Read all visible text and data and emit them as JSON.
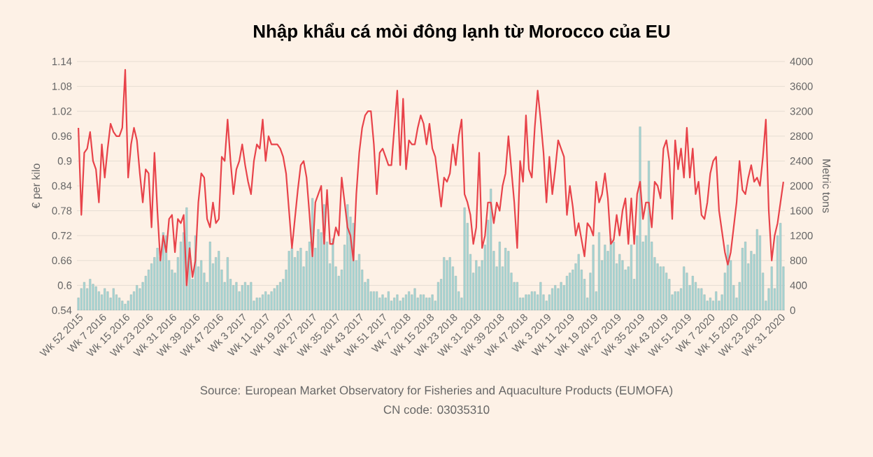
{
  "chart_data": {
    "type": "bar",
    "title": "Nhập khẩu cá mòi đông lạnh từ Morocco của EU",
    "ylabel": "€ per kilo",
    "y2label": "Metric tons",
    "annotations": [
      "Source: European Market Observatory for Fisheries and Aquaculture Products (EUMOFA)",
      "CN code: 03035310"
    ],
    "categories": [
      "Wk 52 2015",
      null,
      null,
      null,
      null,
      null,
      null,
      null,
      "Wk 7 2016",
      null,
      null,
      null,
      null,
      null,
      null,
      null,
      "Wk 15 2016",
      null,
      null,
      null,
      null,
      null,
      null,
      null,
      "Wk 23 2016",
      null,
      null,
      null,
      null,
      null,
      null,
      null,
      "Wk 31 2016",
      null,
      null,
      null,
      null,
      null,
      null,
      null,
      "Wk 39 2016",
      null,
      null,
      null,
      null,
      null,
      null,
      null,
      "Wk 47 2016",
      null,
      null,
      null,
      null,
      null,
      null,
      null,
      "Wk 3 2017",
      null,
      null,
      null,
      null,
      null,
      null,
      null,
      "Wk 11 2017",
      null,
      null,
      null,
      null,
      null,
      null,
      null,
      "Wk 19 2017",
      null,
      null,
      null,
      null,
      null,
      null,
      null,
      "Wk 27 2017",
      null,
      null,
      null,
      null,
      null,
      null,
      null,
      "Wk 35 2017",
      null,
      null,
      null,
      null,
      null,
      null,
      null,
      "Wk 43 2017",
      null,
      null,
      null,
      null,
      null,
      null,
      null,
      "Wk 51 2017",
      null,
      null,
      null,
      null,
      null,
      null,
      null,
      "Wk 7 2018",
      null,
      null,
      null,
      null,
      null,
      null,
      null,
      "Wk 15 2018",
      null,
      null,
      null,
      null,
      null,
      null,
      null,
      "Wk 23 2018",
      null,
      null,
      null,
      null,
      null,
      null,
      null,
      "Wk 31 2018",
      null,
      null,
      null,
      null,
      null,
      null,
      null,
      "Wk 39 2018",
      null,
      null,
      null,
      null,
      null,
      null,
      null,
      "Wk 47 2018",
      null,
      null,
      null,
      null,
      null,
      null,
      null,
      "Wk 3 2019",
      null,
      null,
      null,
      null,
      null,
      null,
      null,
      "Wk 11 2019",
      null,
      null,
      null,
      null,
      null,
      null,
      null,
      "Wk 19 2019",
      null,
      null,
      null,
      null,
      null,
      null,
      null,
      "Wk 27 2019",
      null,
      null,
      null,
      null,
      null,
      null,
      null,
      "Wk 35 2019",
      null,
      null,
      null,
      null,
      null,
      null,
      null,
      "Wk 43 2019",
      null,
      null,
      null,
      null,
      null,
      null,
      null,
      "Wk 51 2019",
      null,
      null,
      null,
      null,
      null,
      null,
      null,
      "Wk 7 2020",
      null,
      null,
      null,
      null,
      null,
      null,
      null,
      "Wk 15 2020",
      null,
      null,
      null,
      null,
      null,
      null,
      null,
      "Wk 23 2020",
      null,
      null,
      null,
      null,
      null,
      null,
      null,
      "Wk 31 2020",
      null
    ],
    "series": [
      {
        "axis": "y2",
        "color": "#a8d5d3",
        "values": [
          200,
          350,
          450,
          350,
          500,
          420,
          380,
          300,
          250,
          350,
          300,
          200,
          350,
          250,
          200,
          150,
          100,
          150,
          250,
          300,
          400,
          350,
          450,
          550,
          650,
          750,
          850,
          1000,
          850,
          1250,
          1200,
          800,
          650,
          600,
          850,
          1100,
          1250,
          1650,
          1100,
          500,
          1200,
          700,
          800,
          600,
          450,
          1100,
          750,
          850,
          950,
          650,
          450,
          850,
          500,
          400,
          450,
          300,
          400,
          450,
          400,
          450,
          150,
          200,
          200,
          250,
          300,
          250,
          300,
          350,
          400,
          450,
          500,
          650,
          950,
          1000,
          850,
          950,
          1000,
          700,
          950,
          1100,
          1800,
          1000,
          1300,
          1250,
          1700,
          1100,
          750,
          1150,
          700,
          550,
          650,
          1050,
          1700,
          1500,
          1400,
          800,
          900,
          650,
          450,
          500,
          300,
          300,
          300,
          200,
          250,
          200,
          300,
          150,
          200,
          250,
          150,
          200,
          250,
          300,
          250,
          350,
          200,
          250,
          250,
          200,
          200,
          250,
          150,
          450,
          500,
          850,
          800,
          850,
          700,
          550,
          300,
          200,
          1650,
          1400,
          900,
          600,
          800,
          700,
          800,
          1050,
          1450,
          1950,
          950,
          700,
          1100,
          700,
          1000,
          950,
          600,
          450,
          450,
          200,
          200,
          250,
          250,
          300,
          300,
          250,
          450,
          250,
          150,
          250,
          350,
          400,
          350,
          450,
          400,
          550,
          600,
          650,
          750,
          900,
          650,
          500,
          200,
          600,
          1050,
          300,
          1250,
          800,
          1050,
          950,
          1150,
          1100,
          750,
          900,
          800,
          650,
          700,
          1050,
          500,
          1200,
          2950,
          1100,
          1200,
          2400,
          1100,
          850,
          750,
          700,
          700,
          600,
          500,
          250,
          300,
          300,
          350,
          700,
          600,
          400,
          550,
          450,
          350,
          350,
          250,
          150,
          200,
          150,
          300,
          150,
          250,
          600,
          1050,
          800,
          400,
          200,
          450,
          1000,
          1100,
          750,
          950,
          900,
          1300,
          1200,
          600,
          150,
          350,
          700,
          350,
          1200,
          1400,
          700
        ]
      },
      {
        "type": "line",
        "color": "#e8434a",
        "values": [
          0.98,
          0.77,
          0.92,
          0.93,
          0.97,
          0.9,
          0.88,
          0.8,
          0.94,
          0.86,
          0.93,
          0.99,
          0.97,
          0.96,
          0.96,
          0.98,
          1.12,
          0.86,
          0.94,
          0.98,
          0.95,
          0.87,
          0.8,
          0.88,
          0.87,
          0.74,
          0.92,
          0.78,
          0.66,
          0.72,
          0.68,
          0.76,
          0.77,
          0.68,
          0.76,
          0.75,
          0.77,
          0.6,
          0.69,
          0.62,
          0.66,
          0.8,
          0.87,
          0.86,
          0.76,
          0.74,
          0.8,
          0.75,
          0.76,
          0.91,
          0.9,
          1.0,
          0.9,
          0.82,
          0.88,
          0.9,
          0.94,
          0.89,
          0.85,
          0.82,
          0.9,
          0.94,
          0.93,
          1.0,
          0.9,
          0.96,
          0.94,
          0.94,
          0.94,
          0.93,
          0.91,
          0.87,
          0.78,
          0.69,
          0.76,
          0.83,
          0.89,
          0.9,
          0.86,
          0.77,
          0.67,
          0.8,
          0.82,
          0.84,
          0.7,
          0.83,
          0.7,
          0.7,
          0.74,
          0.72,
          0.86,
          0.8,
          0.74,
          0.72,
          0.66,
          0.82,
          0.92,
          0.98,
          1.01,
          1.02,
          1.02,
          0.94,
          0.82,
          0.92,
          0.93,
          0.91,
          0.89,
          0.89,
          0.98,
          1.07,
          0.89,
          1.05,
          0.88,
          0.95,
          0.94,
          0.94,
          0.98,
          1.01,
          0.99,
          0.94,
          0.99,
          0.93,
          0.91,
          0.85,
          0.79,
          0.86,
          0.85,
          0.87,
          0.94,
          0.89,
          0.96,
          1.0,
          0.82,
          0.8,
          0.77,
          0.7,
          0.74,
          0.92,
          0.69,
          0.72,
          0.8,
          0.8,
          0.75,
          0.8,
          0.78,
          0.84,
          0.87,
          0.96,
          0.88,
          0.8,
          0.69,
          0.9,
          0.85,
          1.01,
          0.88,
          0.86,
          0.98,
          1.07,
          1.0,
          0.92,
          0.8,
          0.91,
          0.82,
          0.88,
          0.95,
          0.93,
          0.91,
          0.77,
          0.84,
          0.79,
          0.72,
          0.75,
          0.71,
          0.67,
          0.75,
          0.74,
          0.72,
          0.85,
          0.8,
          0.82,
          0.87,
          0.81,
          0.7,
          0.71,
          0.77,
          0.72,
          0.78,
          0.81,
          0.7,
          0.81,
          0.7,
          0.82,
          0.85,
          0.76,
          0.8,
          0.8,
          0.74,
          0.85,
          0.84,
          0.81,
          0.93,
          0.95,
          0.9,
          0.76,
          0.95,
          0.88,
          0.93,
          0.86,
          0.98,
          0.86,
          0.93,
          0.82,
          0.85,
          0.77,
          0.76,
          0.8,
          0.87,
          0.9,
          0.91,
          0.78,
          0.73,
          0.68,
          0.65,
          0.68,
          0.74,
          0.8,
          0.9,
          0.83,
          0.82,
          0.86,
          0.89,
          0.85,
          0.86,
          0.84,
          0.91,
          1.0,
          0.78,
          0.66,
          0.72,
          0.75,
          0.8,
          0.85
        ]
      }
    ],
    "ylim": [
      0.54,
      1.14
    ],
    "yticks": [
      0.54,
      0.6,
      0.66,
      0.72,
      0.78,
      0.84,
      0.9,
      0.96,
      1.02,
      1.08,
      1.14
    ],
    "y2lim": [
      0,
      4000
    ],
    "y2ticks": [
      0,
      400,
      800,
      1200,
      1600,
      2000,
      2400,
      2800,
      3200,
      3600,
      4000
    ],
    "grid": "y"
  }
}
